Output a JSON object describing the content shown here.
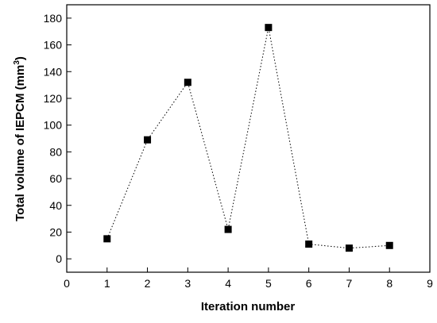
{
  "chart_data": {
    "type": "scatter",
    "title": "",
    "xlabel": "Iteration number",
    "ylabel": "Total volume of IEPCM (mm",
    "ylabel_superscript": "3",
    "ylabel_suffix": ")",
    "xlim": [
      0,
      9
    ],
    "ylim": [
      -10,
      190
    ],
    "xticks": [
      0,
      1,
      2,
      3,
      4,
      5,
      6,
      7,
      8,
      9
    ],
    "yticks": [
      0,
      20,
      40,
      60,
      80,
      100,
      120,
      140,
      160,
      180
    ],
    "grid": false,
    "series": [
      {
        "x": [
          1,
          2,
          3,
          4,
          5,
          6,
          7,
          8
        ],
        "y": [
          15,
          89,
          132,
          22,
          173,
          11,
          8,
          10
        ],
        "marker": "square",
        "line": "dotted",
        "color": "#000000"
      }
    ]
  }
}
